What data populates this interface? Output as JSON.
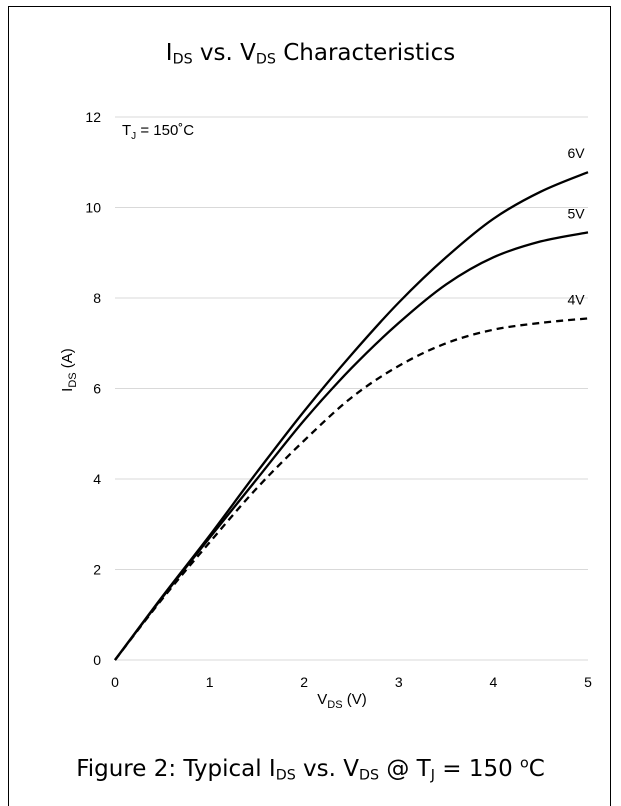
{
  "chart_data": {
    "type": "line",
    "title": {
      "p1": "I",
      "s1": "DS",
      "p2": " vs. V",
      "s2": "DS",
      "p3": " Characteristics"
    },
    "xlabel": {
      "main": "V",
      "sub": "DS",
      "unit": " (V)"
    },
    "ylabel": {
      "main": "I",
      "sub": "DS",
      "unit": " (A)"
    },
    "xlim": [
      0,
      5
    ],
    "ylim": [
      0,
      12
    ],
    "xticks": [
      "0",
      "1",
      "2",
      "3",
      "4",
      "5"
    ],
    "yticks": [
      "0",
      "2",
      "4",
      "6",
      "8",
      "10",
      "12"
    ],
    "grid": "horizontal",
    "annotation": {
      "p1": "T",
      "s1": "J",
      "p2": " = 150˚C"
    },
    "series": [
      {
        "name": "6V",
        "style": "solid",
        "color": "#000000",
        "x": [
          0,
          0.5,
          1,
          1.5,
          2,
          2.5,
          3,
          3.5,
          4,
          4.5,
          5
        ],
        "y": [
          0,
          1.4,
          2.75,
          4.15,
          5.5,
          6.75,
          7.9,
          8.9,
          9.75,
          10.35,
          10.78
        ]
      },
      {
        "name": "5V",
        "style": "solid",
        "color": "#000000",
        "x": [
          0,
          0.5,
          1,
          1.5,
          2,
          2.5,
          3,
          3.5,
          4,
          4.5,
          5
        ],
        "y": [
          0,
          1.38,
          2.7,
          4.0,
          5.3,
          6.45,
          7.45,
          8.3,
          8.9,
          9.25,
          9.45
        ]
      },
      {
        "name": "4V",
        "style": "dashed",
        "color": "#000000",
        "x": [
          0,
          0.5,
          1,
          1.5,
          2,
          2.5,
          3,
          3.5,
          4,
          4.5,
          5
        ],
        "y": [
          0,
          1.35,
          2.6,
          3.8,
          4.85,
          5.8,
          6.5,
          7.0,
          7.3,
          7.45,
          7.55
        ]
      }
    ]
  },
  "caption": {
    "p1": "Figure 2: Typical I",
    "s1": "DS",
    "p2": " vs. V",
    "s2": "DS",
    "p3": " @ T",
    "s3": "J",
    "p4": " = 150 ",
    "sup": "o",
    "p5": "C"
  }
}
